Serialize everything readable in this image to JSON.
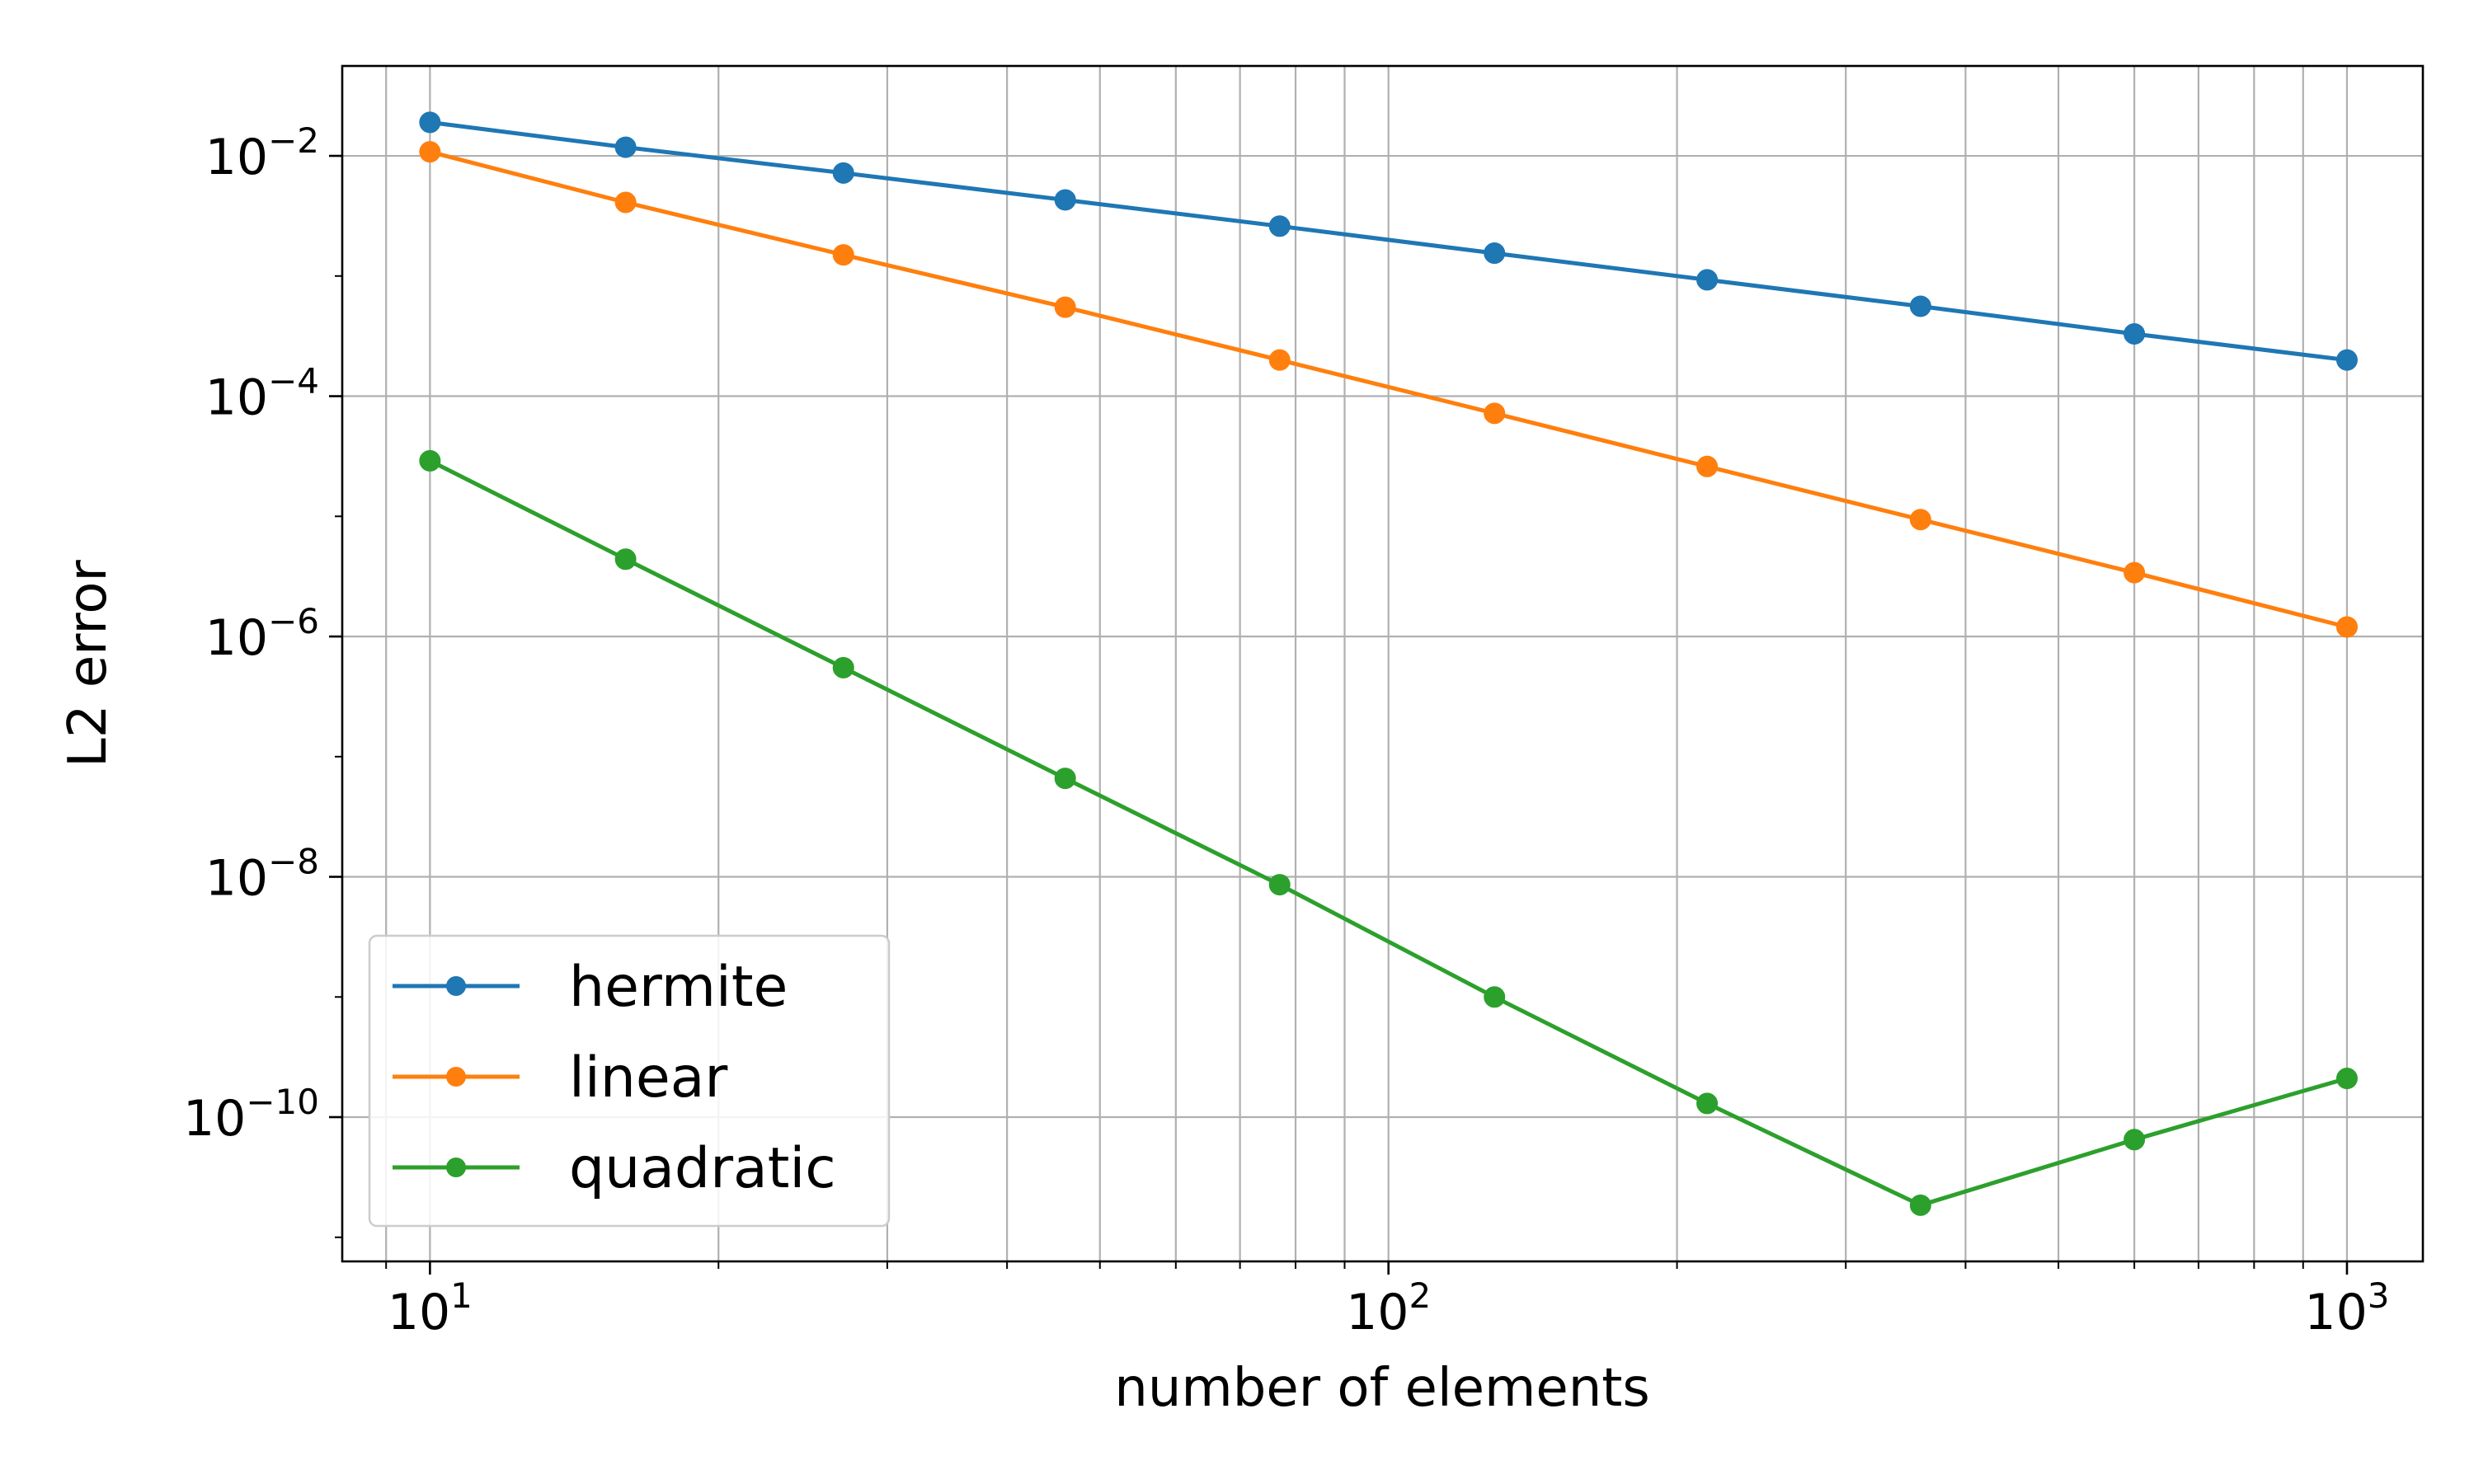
{
  "chart_data": {
    "type": "line",
    "title": "",
    "xlabel": "number of elements",
    "ylabel": "L2 error",
    "xscale": "log",
    "yscale": "log",
    "xlim": [
      8.1,
      1200
    ],
    "ylim": [
      6.3e-12,
      0.056
    ],
    "grid": "major and minor (x), major (y)",
    "legend_position": "lower-left",
    "x_ticks": [
      {
        "value": 10,
        "base": "10",
        "exp": "1"
      },
      {
        "value": 100,
        "base": "10",
        "exp": "2"
      },
      {
        "value": 1000,
        "base": "10",
        "exp": "3"
      }
    ],
    "y_ticks": [
      {
        "value": 0.01,
        "base": "10",
        "exp": "−2"
      },
      {
        "value": 0.0001,
        "base": "10",
        "exp": "−4"
      },
      {
        "value": 1e-06,
        "base": "10",
        "exp": "−6"
      },
      {
        "value": 1e-08,
        "base": "10",
        "exp": "−8"
      },
      {
        "value": 1e-10,
        "base": "10",
        "exp": "−10"
      }
    ],
    "x": [
      10,
      16,
      27,
      46,
      77,
      129,
      215,
      359,
      600,
      1000
    ],
    "series": [
      {
        "name": "hermite",
        "color": "#1f77b4",
        "values": [
          0.019,
          0.0118,
          0.0072,
          0.0043,
          0.0026,
          0.00155,
          0.00093,
          0.00056,
          0.00033,
          0.0002
        ]
      },
      {
        "name": "linear",
        "color": "#ff7f0e",
        "values": [
          0.0108,
          0.0041,
          0.0015,
          0.00055,
          0.0002,
          7.2e-05,
          2.6e-05,
          9.4e-06,
          3.4e-06,
          1.2e-06
        ]
      },
      {
        "name": "quadratic",
        "color": "#2ca02c",
        "values": [
          2.9e-05,
          4.4e-06,
          5.5e-07,
          6.6e-08,
          8.6e-09,
          1e-09,
          1.3e-10,
          1.85e-11,
          6.5e-11,
          2.1e-10
        ]
      }
    ]
  }
}
